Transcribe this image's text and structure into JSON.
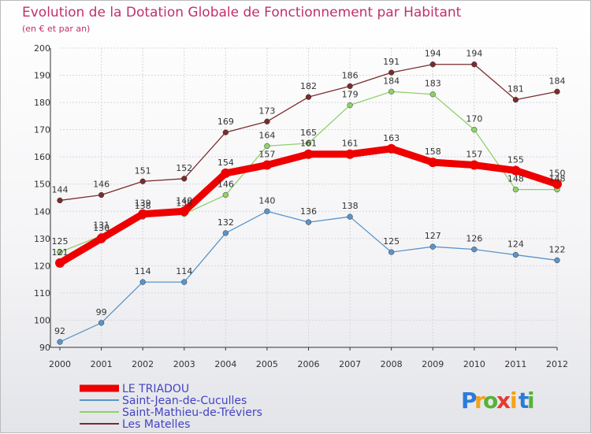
{
  "chart_data": {
    "type": "line",
    "title": "Evolution de la Dotation Globale de Fonctionnement par Habitant",
    "subtitle": "(en € et par an)",
    "x": [
      "2000",
      "2001",
      "2002",
      "2003",
      "2004",
      "2005",
      "2006",
      "2007",
      "2008",
      "2009",
      "2010",
      "2011",
      "2012"
    ],
    "ylim": [
      90,
      200
    ],
    "yticks": [
      90,
      100,
      110,
      120,
      130,
      140,
      150,
      160,
      170,
      180,
      190,
      200
    ],
    "series": [
      {
        "name": "Les Matelles",
        "color": "#7a2c2c",
        "values": [
          144,
          146,
          151,
          152,
          169,
          173,
          182,
          186,
          191,
          194,
          194,
          181,
          184
        ]
      },
      {
        "name": "Saint-Mathieu-de-Tréviers",
        "color": "#8fd16a",
        "values": [
          125,
          131,
          138,
          139,
          146,
          164,
          165,
          179,
          184,
          183,
          170,
          148,
          148
        ]
      },
      {
        "name": "Saint-Jean-de-Cuculles",
        "color": "#5b94c8",
        "values": [
          92,
          99,
          114,
          114,
          132,
          140,
          136,
          138,
          125,
          127,
          126,
          124,
          122
        ]
      },
      {
        "name": "LE TRIADOU",
        "color": "#ee0000",
        "values": [
          121,
          130,
          139,
          140,
          154,
          157,
          161,
          161,
          163,
          158,
          157,
          155,
          150
        ]
      }
    ],
    "legend": [
      "LE TRIADOU",
      "Saint-Jean-de-Cuculles",
      "Saint-Mathieu-de-Tréviers",
      "Les Matelles"
    ]
  },
  "logo": {
    "letters": [
      "P",
      "r",
      "o",
      "x",
      "i",
      "t",
      "i"
    ],
    "colors": [
      "#2b7bd9",
      "#f6a11a",
      "#56b336",
      "#e63a2e",
      "#f6a11a",
      "#2b7bd9",
      "#56b336"
    ]
  }
}
